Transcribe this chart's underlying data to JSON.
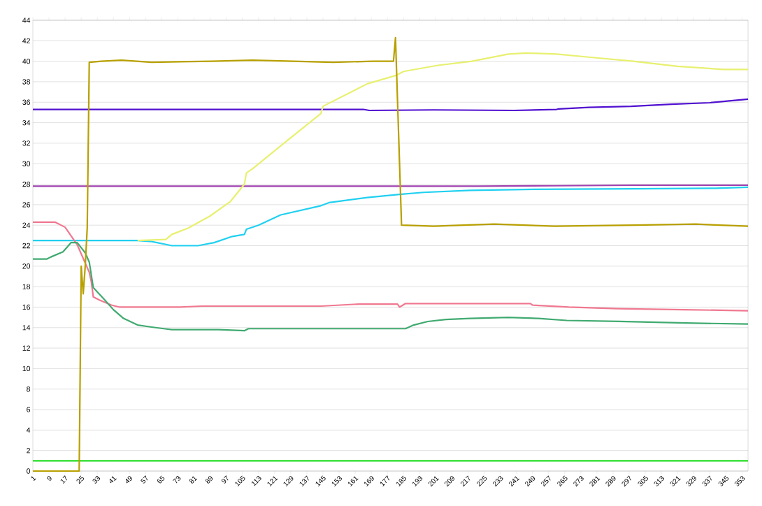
{
  "chart_data": {
    "type": "line",
    "xlim": [
      1,
      356
    ],
    "ylim": [
      0,
      44
    ],
    "xticks": [
      1,
      9,
      17,
      25,
      33,
      41,
      49,
      57,
      65,
      73,
      81,
      89,
      97,
      105,
      113,
      121,
      129,
      137,
      145,
      153,
      161,
      169,
      177,
      185,
      193,
      201,
      209,
      217,
      225,
      233,
      241,
      249,
      257,
      265,
      273,
      281,
      289,
      297,
      305,
      313,
      321,
      329,
      337,
      345,
      353
    ],
    "yticks": [
      0,
      2,
      4,
      6,
      8,
      10,
      12,
      14,
      16,
      18,
      20,
      22,
      24,
      26,
      28,
      30,
      32,
      34,
      36,
      38,
      40,
      42,
      44
    ],
    "grid": "y",
    "legend": false,
    "marker": "none",
    "line_style": "solid",
    "series": [
      {
        "color": "#22dd22",
        "x": [
          1,
          356
        ],
        "values": [
          1.0,
          1.0
        ]
      },
      {
        "color": "#a040b0",
        "x": [
          1,
          100,
          222,
          260,
          300,
          356
        ],
        "values": [
          27.8,
          27.8,
          27.8,
          27.85,
          27.9,
          27.9
        ]
      },
      {
        "color": "#5010d0",
        "x": [
          1,
          165,
          168,
          200,
          240,
          261,
          262,
          277,
          298,
          318,
          337,
          356
        ],
        "values": [
          35.3,
          35.3,
          35.2,
          35.25,
          35.2,
          35.3,
          35.35,
          35.5,
          35.6,
          35.8,
          35.95,
          36.3
        ]
      },
      {
        "color": "#20d0f0",
        "x": [
          1,
          53,
          60,
          70,
          83,
          91,
          100,
          106,
          107,
          113,
          124,
          144,
          148,
          167,
          183,
          195,
          218,
          250,
          300,
          340,
          356
        ],
        "values": [
          22.5,
          22.5,
          22.4,
          22.0,
          22.0,
          22.3,
          22.9,
          23.1,
          23.6,
          24.0,
          25.0,
          25.9,
          26.2,
          26.7,
          27.0,
          27.2,
          27.4,
          27.5,
          27.55,
          27.6,
          27.7
        ]
      },
      {
        "color": "#e8f070",
        "x": [
          53,
          67,
          70,
          78,
          89,
          99,
          106,
          107,
          110,
          125,
          144,
          145,
          167,
          181,
          185,
          202,
          219,
          237,
          246,
          261,
          277,
          299,
          321,
          344,
          356
        ],
        "values": [
          22.5,
          22.6,
          23.1,
          23.7,
          24.9,
          26.3,
          28.0,
          29.1,
          29.5,
          31.9,
          34.9,
          35.6,
          37.8,
          38.6,
          39.0,
          39.6,
          40.0,
          40.7,
          40.8,
          40.7,
          40.4,
          40.0,
          39.5,
          39.2,
          39.2
        ]
      },
      {
        "color": "#f07890",
        "x": [
          1,
          12,
          17,
          23,
          29,
          30,
          31,
          34,
          40,
          44,
          74,
          85,
          144,
          163,
          182,
          183,
          186,
          248,
          249,
          267,
          291,
          324,
          356
        ],
        "values": [
          24.3,
          24.3,
          23.8,
          22.1,
          19.4,
          18.5,
          17.0,
          16.7,
          16.2,
          16.0,
          16.0,
          16.1,
          16.1,
          16.3,
          16.3,
          16.0,
          16.35,
          16.35,
          16.2,
          16.0,
          15.85,
          15.75,
          15.65
        ]
      },
      {
        "color": "#40aa70",
        "x": [
          1,
          8,
          10,
          16,
          20,
          23,
          27,
          29,
          31,
          36,
          41,
          46,
          53,
          60,
          66,
          70,
          93,
          106,
          108,
          186,
          190,
          197,
          206,
          218,
          237,
          252,
          266,
          292,
          325,
          356
        ],
        "values": [
          20.7,
          20.7,
          20.9,
          21.4,
          22.3,
          22.3,
          21.3,
          20.4,
          17.9,
          16.85,
          15.75,
          14.9,
          14.25,
          14.05,
          13.9,
          13.8,
          13.8,
          13.7,
          13.9,
          13.9,
          14.25,
          14.6,
          14.8,
          14.9,
          15.0,
          14.9,
          14.7,
          14.6,
          14.45,
          14.35
        ]
      },
      {
        "color": "#b8a000",
        "x": [
          1,
          24,
          25,
          26,
          27,
          28,
          29,
          35,
          45,
          60,
          90,
          110,
          130,
          150,
          170,
          180,
          181,
          184,
          200,
          230,
          260,
          300,
          330,
          356
        ],
        "values": [
          0,
          0,
          20,
          17.3,
          20,
          23.8,
          39.9,
          40.0,
          40.1,
          39.9,
          40.0,
          40.1,
          40.0,
          39.9,
          40.0,
          40.0,
          42.3,
          24.0,
          23.9,
          24.1,
          23.9,
          24.0,
          24.1,
          23.9
        ]
      }
    ]
  }
}
